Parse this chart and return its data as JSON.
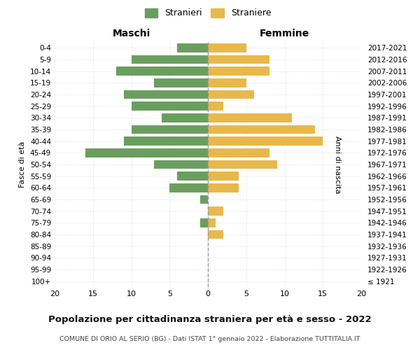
{
  "age_groups": [
    "100+",
    "95-99",
    "90-94",
    "85-89",
    "80-84",
    "75-79",
    "70-74",
    "65-69",
    "60-64",
    "55-59",
    "50-54",
    "45-49",
    "40-44",
    "35-39",
    "30-34",
    "25-29",
    "20-24",
    "15-19",
    "10-14",
    "5-9",
    "0-4"
  ],
  "birth_years": [
    "≤ 1921",
    "1922-1926",
    "1927-1931",
    "1932-1936",
    "1937-1941",
    "1942-1946",
    "1947-1951",
    "1952-1956",
    "1957-1961",
    "1962-1966",
    "1967-1971",
    "1972-1976",
    "1977-1981",
    "1982-1986",
    "1987-1991",
    "1992-1996",
    "1997-2001",
    "2002-2006",
    "2007-2011",
    "2012-2016",
    "2017-2021"
  ],
  "maschi": [
    0,
    0,
    0,
    0,
    0,
    1,
    0,
    1,
    5,
    4,
    7,
    16,
    11,
    10,
    6,
    10,
    11,
    7,
    12,
    10,
    4
  ],
  "femmine": [
    0,
    0,
    0,
    0,
    2,
    1,
    2,
    0,
    4,
    4,
    9,
    8,
    15,
    14,
    11,
    2,
    6,
    5,
    8,
    8,
    5
  ],
  "color_maschi": "#6a9e5f",
  "color_femmine": "#e8b84b",
  "title": "Popolazione per cittadinanza straniera per età e sesso - 2022",
  "subtitle": "COMUNE DI ORIO AL SERIO (BG) - Dati ISTAT 1° gennaio 2022 - Elaborazione TUTTITALIA.IT",
  "xlabel_left": "Maschi",
  "xlabel_right": "Femmine",
  "ylabel_left": "Fasce di età",
  "ylabel_right": "Anni di nascita",
  "legend_maschi": "Stranieri",
  "legend_femmine": "Straniere",
  "xlim": 20,
  "bg_color": "#ffffff",
  "grid_color": "#d0d0d0",
  "dashed_color": "#999999"
}
